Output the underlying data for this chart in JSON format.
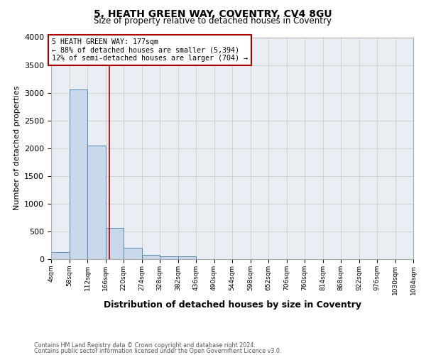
{
  "title": "5, HEATH GREEN WAY, COVENTRY, CV4 8GU",
  "subtitle": "Size of property relative to detached houses in Coventry",
  "xlabel": "Distribution of detached houses by size in Coventry",
  "ylabel": "Number of detached properties",
  "footnote1": "Contains HM Land Registry data © Crown copyright and database right 2024.",
  "footnote2": "Contains public sector information licensed under the Open Government Licence v3.0.",
  "bar_color": "#c8d8ea",
  "bar_edge_color": "#5a8ab0",
  "vline_x": 177,
  "vline_color": "#aa0000",
  "annotation_text": "5 HEATH GREEN WAY: 177sqm\n← 88% of detached houses are smaller (5,394)\n12% of semi-detached houses are larger (704) →",
  "annotation_box_color": "#aa0000",
  "bin_edges": [
    4,
    58,
    112,
    166,
    220,
    274,
    328,
    382,
    436,
    490,
    544,
    598,
    652,
    706,
    760,
    814,
    868,
    922,
    976,
    1030,
    1084
  ],
  "bin_heights": [
    130,
    3060,
    2050,
    560,
    200,
    75,
    45,
    50,
    0,
    0,
    0,
    0,
    0,
    0,
    0,
    0,
    0,
    0,
    0,
    0
  ],
  "xlim": [
    4,
    1084
  ],
  "ylim": [
    0,
    4000
  ],
  "yticks": [
    0,
    500,
    1000,
    1500,
    2000,
    2500,
    3000,
    3500,
    4000
  ],
  "tick_labels": [
    "4sqm",
    "58sqm",
    "112sqm",
    "166sqm",
    "220sqm",
    "274sqm",
    "328sqm",
    "382sqm",
    "436sqm",
    "490sqm",
    "544sqm",
    "598sqm",
    "652sqm",
    "706sqm",
    "760sqm",
    "814sqm",
    "868sqm",
    "922sqm",
    "976sqm",
    "1030sqm",
    "1084sqm"
  ],
  "grid_color": "#cccccc",
  "background_color": "#e8eef4"
}
